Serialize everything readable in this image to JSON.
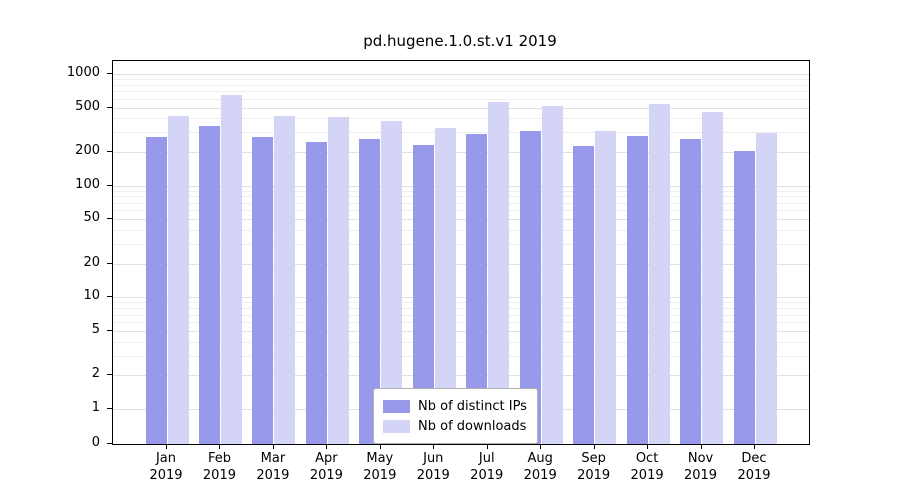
{
  "title": "pd.hugene.1.0.st.v1 2019",
  "colors": {
    "distinct_ips": "#9999ec",
    "downloads": "#d4d4f7",
    "grid_major": "#e0e0e0",
    "grid_minor": "#efefef",
    "axis": "#000000",
    "legend_border": "#b3b3b3"
  },
  "legend": {
    "items": [
      {
        "label": "Nb of distinct IPs",
        "color": "#9999ec"
      },
      {
        "label": "Nb of downloads",
        "color": "#d4d4f7"
      }
    ]
  },
  "chart_data": {
    "type": "bar",
    "title": "pd.hugene.1.0.st.v1 2019",
    "categories": [
      "Jan 2019",
      "Feb 2019",
      "Mar 2019",
      "Apr 2019",
      "May 2019",
      "Jun 2019",
      "Jul 2019",
      "Aug 2019",
      "Sep 2019",
      "Oct 2019",
      "Nov 2019",
      "Dec 2019"
    ],
    "series": [
      {
        "name": "Nb of distinct IPs",
        "color": "#9999ec",
        "values": [
          270,
          345,
          270,
          245,
          260,
          230,
          290,
          310,
          225,
          280,
          260,
          205
        ]
      },
      {
        "name": "Nb of downloads",
        "color": "#d4d4f7",
        "values": [
          420,
          650,
          420,
          410,
          380,
          330,
          560,
          520,
          310,
          540,
          455,
          295
        ]
      }
    ],
    "xlabel": "",
    "ylabel": "",
    "yscale": "symlog",
    "yticks": [
      0,
      1,
      2,
      5,
      10,
      20,
      50,
      100,
      200,
      500,
      1000
    ],
    "ylim": [
      0,
      1300
    ],
    "grid": true,
    "legend_position": "lower center"
  }
}
